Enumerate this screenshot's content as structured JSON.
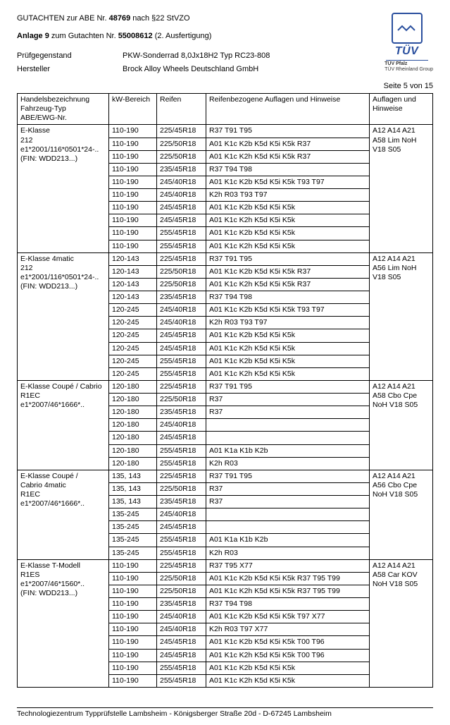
{
  "header": {
    "line1_pre": "GUTACHTEN zur ABE Nr. ",
    "abe_nr": "48769",
    "line1_post": " nach §22 StVZO",
    "anlage_pre": "Anlage 9",
    "anlage_mid": " zum Gutachten Nr. ",
    "gutachten_nr": "55008612",
    "anlage_post": " (2. Ausfertigung)",
    "pruef_label": "Prüfgegenstand",
    "pruef_val": "PKW-Sonderrad 8,0Jx18H2 Typ RC23-808",
    "herst_label": "Hersteller",
    "herst_val": "Brock Alloy Wheels Deutschland GmbH",
    "page": "Seite 5 von 15"
  },
  "tuv": {
    "brand": "TÜV",
    "sub1": "TÜV Pfalz",
    "sub2": "TÜV Rheinland Group"
  },
  "columns": {
    "c1": "Handelsbezeichnung\nFahrzeug-Typ\nABE/EWG-Nr.",
    "c2": "kW-Bereich",
    "c3": "Reifen",
    "c4": "Reifenbezogene Auflagen und Hinweise",
    "c5": "Auflagen und Hinweise"
  },
  "groups": [
    {
      "model": [
        "E-Klasse",
        "212",
        "e1*2001/116*0501*24-..",
        "(FIN: WDD213...)"
      ],
      "auflagen": [
        "A12 A14 A21",
        "A58 Lim NoH",
        "V18 S05"
      ],
      "rows": [
        {
          "kw": "110-190",
          "tire": "225/45R18",
          "ref": "R37 T91 T95"
        },
        {
          "kw": "110-190",
          "tire": "225/50R18",
          "ref": "A01 K1c K2b K5d K5i K5k R37"
        },
        {
          "kw": "110-190",
          "tire": "225/50R18",
          "ref": "A01 K1c K2h K5d K5i K5k R37"
        },
        {
          "kw": "110-190",
          "tire": "235/45R18",
          "ref": "R37 T94 T98"
        },
        {
          "kw": "110-190",
          "tire": "245/40R18",
          "ref": "A01 K1c K2b K5d K5i K5k T93 T97"
        },
        {
          "kw": "110-190",
          "tire": "245/40R18",
          "ref": "K2h R03 T93 T97"
        },
        {
          "kw": "110-190",
          "tire": "245/45R18",
          "ref": "A01 K1c K2b K5d K5i K5k"
        },
        {
          "kw": "110-190",
          "tire": "245/45R18",
          "ref": "A01 K1c K2h K5d K5i K5k"
        },
        {
          "kw": "110-190",
          "tire": "255/45R18",
          "ref": "A01 K1c K2b K5d K5i K5k"
        },
        {
          "kw": "110-190",
          "tire": "255/45R18",
          "ref": "A01 K1c K2h K5d K5i K5k"
        }
      ]
    },
    {
      "model": [
        "E-Klasse 4matic",
        "212",
        "e1*2001/116*0501*24-..",
        "(FIN: WDD213...)"
      ],
      "auflagen": [
        "A12 A14 A21",
        "A56 Lim NoH",
        "V18 S05"
      ],
      "rows": [
        {
          "kw": "120-143",
          "tire": "225/45R18",
          "ref": "R37 T91 T95"
        },
        {
          "kw": "120-143",
          "tire": "225/50R18",
          "ref": "A01 K1c K2b K5d K5i K5k R37"
        },
        {
          "kw": "120-143",
          "tire": "225/50R18",
          "ref": "A01 K1c K2h K5d K5i K5k R37"
        },
        {
          "kw": "120-143",
          "tire": "235/45R18",
          "ref": "R37 T94 T98"
        },
        {
          "kw": "120-245",
          "tire": "245/40R18",
          "ref": "A01 K1c K2b K5d K5i K5k T93 T97"
        },
        {
          "kw": "120-245",
          "tire": "245/40R18",
          "ref": "K2h R03 T93 T97"
        },
        {
          "kw": "120-245",
          "tire": "245/45R18",
          "ref": "A01 K1c K2b K5d K5i K5k"
        },
        {
          "kw": "120-245",
          "tire": "245/45R18",
          "ref": "A01 K1c K2h K5d K5i K5k"
        },
        {
          "kw": "120-245",
          "tire": "255/45R18",
          "ref": "A01 K1c K2b K5d K5i K5k"
        },
        {
          "kw": "120-245",
          "tire": "255/45R18",
          "ref": "A01 K1c K2h K5d K5i K5k"
        }
      ]
    },
    {
      "model": [
        "E-Klasse Coupé / Cabrio",
        "R1EC",
        "e1*2007/46*1666*.."
      ],
      "auflagen": [
        "A12 A14 A21",
        "A58 Cbo Cpe",
        "NoH V18 S05"
      ],
      "rows": [
        {
          "kw": "120-180",
          "tire": "225/45R18",
          "ref": "R37 T91 T95"
        },
        {
          "kw": "120-180",
          "tire": "225/50R18",
          "ref": "R37"
        },
        {
          "kw": "120-180",
          "tire": "235/45R18",
          "ref": "R37"
        },
        {
          "kw": "120-180",
          "tire": "245/40R18",
          "ref": ""
        },
        {
          "kw": "120-180",
          "tire": "245/45R18",
          "ref": ""
        },
        {
          "kw": "120-180",
          "tire": "255/45R18",
          "ref": "A01 K1a K1b K2b"
        },
        {
          "kw": "120-180",
          "tire": "255/45R18",
          "ref": "K2h R03"
        }
      ]
    },
    {
      "model": [
        "E-Klasse Coupé /",
        "Cabrio 4matic",
        "R1EC",
        "e1*2007/46*1666*.."
      ],
      "auflagen": [
        "A12 A14 A21",
        "A56 Cbo Cpe",
        "NoH V18 S05"
      ],
      "rows": [
        {
          "kw": "135, 143",
          "tire": "225/45R18",
          "ref": "R37 T91 T95"
        },
        {
          "kw": "135, 143",
          "tire": "225/50R18",
          "ref": "R37"
        },
        {
          "kw": "135, 143",
          "tire": "235/45R18",
          "ref": "R37"
        },
        {
          "kw": "135-245",
          "tire": "245/40R18",
          "ref": ""
        },
        {
          "kw": "135-245",
          "tire": "245/45R18",
          "ref": ""
        },
        {
          "kw": "135-245",
          "tire": "255/45R18",
          "ref": "A01 K1a K1b K2b"
        },
        {
          "kw": "135-245",
          "tire": "255/45R18",
          "ref": "K2h R03"
        }
      ]
    },
    {
      "model": [
        "E-Klasse T-Modell",
        "R1ES",
        "e1*2007/46*1560*..",
        "(FIN: WDD213...)"
      ],
      "auflagen": [
        "A12 A14 A21",
        "A58 Car KOV",
        "NoH V18 S05"
      ],
      "rows": [
        {
          "kw": "110-190",
          "tire": "225/45R18",
          "ref": "R37 T95 X77"
        },
        {
          "kw": "110-190",
          "tire": "225/50R18",
          "ref": "A01 K1c K2b K5d K5i K5k R37 T95 T99"
        },
        {
          "kw": "110-190",
          "tire": "225/50R18",
          "ref": "A01 K1c K2h K5d K5i K5k R37 T95 T99"
        },
        {
          "kw": "110-190",
          "tire": "235/45R18",
          "ref": "R37 T94 T98"
        },
        {
          "kw": "110-190",
          "tire": "245/40R18",
          "ref": "A01 K1c K2b K5d K5i K5k T97 X77"
        },
        {
          "kw": "110-190",
          "tire": "245/40R18",
          "ref": "K2h R03 T97 X77"
        },
        {
          "kw": "110-190",
          "tire": "245/45R18",
          "ref": "A01 K1c K2b K5d K5i K5k T00 T96"
        },
        {
          "kw": "110-190",
          "tire": "245/45R18",
          "ref": "A01 K1c K2h K5d K5i K5k T00 T96"
        },
        {
          "kw": "110-190",
          "tire": "255/45R18",
          "ref": "A01 K1c K2b K5d K5i K5k"
        },
        {
          "kw": "110-190",
          "tire": "255/45R18",
          "ref": "A01 K1c K2h K5d K5i K5k"
        }
      ]
    }
  ],
  "footer": "Technologiezentrum Typprüfstelle Lambsheim - Königsberger Straße 20d - D-67245 Lambsheim"
}
